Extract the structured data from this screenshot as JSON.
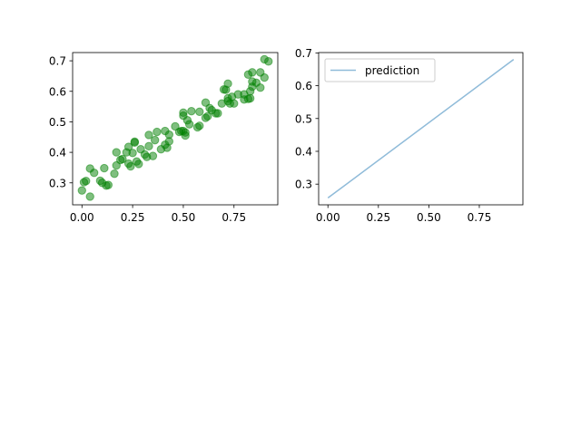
{
  "chart_data": [
    {
      "type": "scatter",
      "title": "",
      "xlabel": "",
      "ylabel": "",
      "xlim": [
        -0.046,
        0.966
      ],
      "ylim": [
        0.228,
        0.727
      ],
      "xticks": [
        0.0,
        0.25,
        0.5,
        0.75
      ],
      "xtick_labels": [
        "0.00",
        "0.25",
        "0.50",
        "0.75"
      ],
      "yticks": [
        0.3,
        0.4,
        0.5,
        0.6,
        0.7
      ],
      "ytick_labels": [
        "0.3",
        "0.4",
        "0.5",
        "0.6",
        "0.7"
      ],
      "grid": false,
      "legend": null,
      "series": [
        {
          "color": "#008000",
          "alpha": 0.5,
          "points": [
            [
              0.0,
              0.275
            ],
            [
              0.01,
              0.302
            ],
            [
              0.02,
              0.306
            ],
            [
              0.04,
              0.255
            ],
            [
              0.04,
              0.347
            ],
            [
              0.06,
              0.333
            ],
            [
              0.09,
              0.307
            ],
            [
              0.1,
              0.3
            ],
            [
              0.11,
              0.348
            ],
            [
              0.12,
              0.291
            ],
            [
              0.13,
              0.293
            ],
            [
              0.16,
              0.33
            ],
            [
              0.17,
              0.357
            ],
            [
              0.17,
              0.4
            ],
            [
              0.19,
              0.375
            ],
            [
              0.2,
              0.378
            ],
            [
              0.22,
              0.4
            ],
            [
              0.23,
              0.363
            ],
            [
              0.23,
              0.418
            ],
            [
              0.24,
              0.354
            ],
            [
              0.25,
              0.398
            ],
            [
              0.26,
              0.432
            ],
            [
              0.26,
              0.435
            ],
            [
              0.27,
              0.37
            ],
            [
              0.28,
              0.362
            ],
            [
              0.29,
              0.41
            ],
            [
              0.31,
              0.393
            ],
            [
              0.32,
              0.385
            ],
            [
              0.33,
              0.42
            ],
            [
              0.33,
              0.457
            ],
            [
              0.35,
              0.388
            ],
            [
              0.36,
              0.44
            ],
            [
              0.37,
              0.467
            ],
            [
              0.39,
              0.41
            ],
            [
              0.41,
              0.425
            ],
            [
              0.41,
              0.47
            ],
            [
              0.42,
              0.415
            ],
            [
              0.43,
              0.436
            ],
            [
              0.43,
              0.458
            ],
            [
              0.46,
              0.485
            ],
            [
              0.48,
              0.467
            ],
            [
              0.49,
              0.47
            ],
            [
              0.5,
              0.47
            ],
            [
              0.5,
              0.52
            ],
            [
              0.5,
              0.53
            ],
            [
              0.51,
              0.455
            ],
            [
              0.51,
              0.465
            ],
            [
              0.52,
              0.505
            ],
            [
              0.53,
              0.492
            ],
            [
              0.54,
              0.535
            ],
            [
              0.57,
              0.482
            ],
            [
              0.58,
              0.487
            ],
            [
              0.58,
              0.533
            ],
            [
              0.61,
              0.513
            ],
            [
              0.61,
              0.563
            ],
            [
              0.62,
              0.518
            ],
            [
              0.63,
              0.545
            ],
            [
              0.64,
              0.538
            ],
            [
              0.66,
              0.528
            ],
            [
              0.67,
              0.528
            ],
            [
              0.69,
              0.56
            ],
            [
              0.7,
              0.606
            ],
            [
              0.71,
              0.605
            ],
            [
              0.72,
              0.568
            ],
            [
              0.72,
              0.577
            ],
            [
              0.72,
              0.625
            ],
            [
              0.73,
              0.56
            ],
            [
              0.74,
              0.582
            ],
            [
              0.75,
              0.56
            ],
            [
              0.77,
              0.59
            ],
            [
              0.8,
              0.573
            ],
            [
              0.8,
              0.59
            ],
            [
              0.82,
              0.575
            ],
            [
              0.82,
              0.655
            ],
            [
              0.83,
              0.577
            ],
            [
              0.83,
              0.6
            ],
            [
              0.84,
              0.615
            ],
            [
              0.84,
              0.632
            ],
            [
              0.84,
              0.662
            ],
            [
              0.86,
              0.628
            ],
            [
              0.88,
              0.612
            ],
            [
              0.88,
              0.662
            ],
            [
              0.9,
              0.645
            ],
            [
              0.9,
              0.705
            ],
            [
              0.92,
              0.698
            ]
          ]
        }
      ]
    },
    {
      "type": "line",
      "title": "",
      "xlabel": "",
      "ylabel": "",
      "xlim": [
        -0.046,
        0.966
      ],
      "ylim": [
        0.237,
        0.701
      ],
      "xticks": [
        0.0,
        0.25,
        0.5,
        0.75
      ],
      "xtick_labels": [
        "0.00",
        "0.25",
        "0.50",
        "0.75"
      ],
      "yticks": [
        0.3,
        0.4,
        0.5,
        0.6,
        0.7
      ],
      "ytick_labels": [
        "0.3",
        "0.4",
        "0.5",
        "0.6",
        "0.7"
      ],
      "grid": false,
      "legend": "upper-left",
      "series": [
        {
          "name": "prediction",
          "color": "#1f77b4",
          "alpha": 0.5,
          "x": [
            0.0,
            0.92
          ],
          "y": [
            0.258,
            0.68
          ]
        }
      ]
    }
  ],
  "colors": {
    "background": "#ffffff",
    "axis": "#000000"
  }
}
